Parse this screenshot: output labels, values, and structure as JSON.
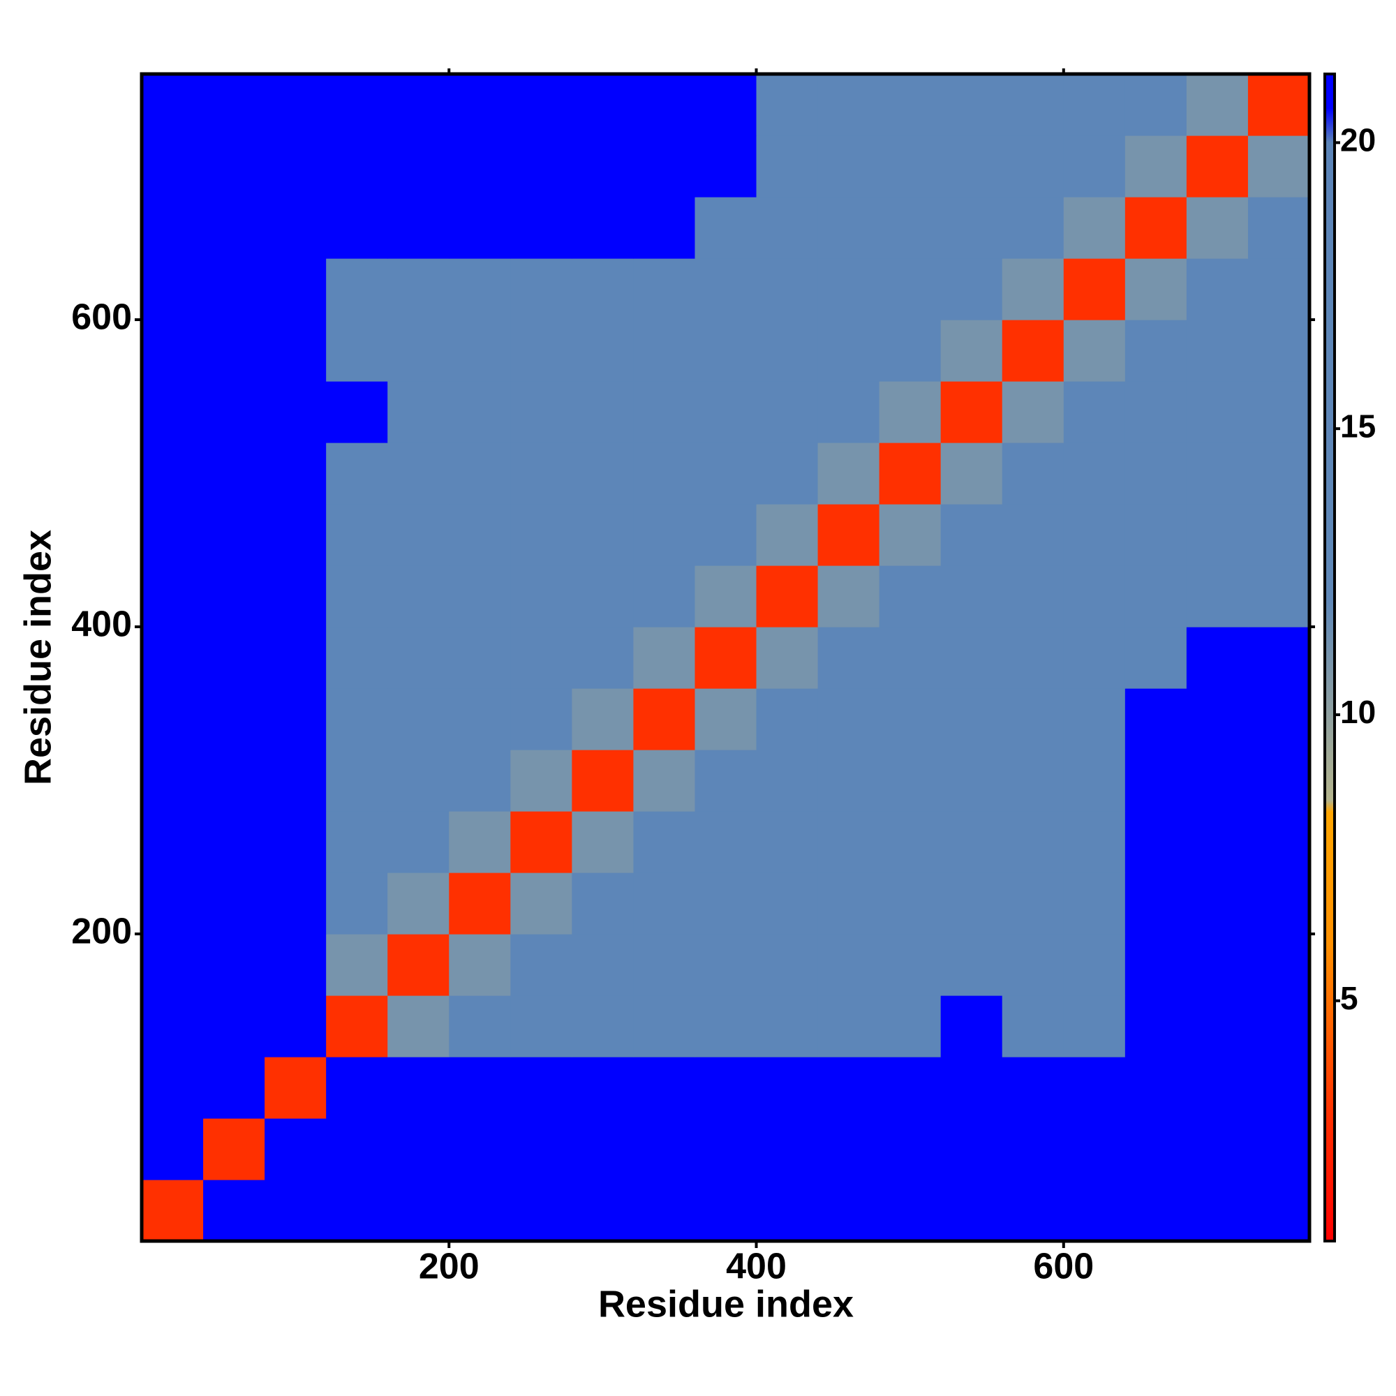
{
  "chart_data": {
    "type": "heatmap",
    "x_label": "Residue index",
    "y_label": "Residue index",
    "xlim": [
      0,
      760
    ],
    "ylim": [
      0,
      760
    ],
    "xticks": [
      200,
      400,
      600
    ],
    "yticks": [
      200,
      400,
      600
    ],
    "clim": [
      0.8,
      21.2
    ],
    "cticks": [
      5,
      10,
      15,
      20
    ],
    "colorscale": [
      [
        0.8,
        "#ff0000"
      ],
      [
        3,
        "#ff3000"
      ],
      [
        6,
        "#ff9000"
      ],
      [
        8.3,
        "#ffa500"
      ],
      [
        8.5,
        "#b4b48c"
      ],
      [
        10,
        "#8fa0a0"
      ],
      [
        12,
        "#5f88b8"
      ],
      [
        20,
        "#5b84b8"
      ],
      [
        20.6,
        "#0000ff"
      ],
      [
        21.2,
        "#0000ff"
      ]
    ],
    "xbins": [
      0,
      40,
      80,
      120,
      160,
      200,
      240,
      280,
      320,
      360,
      400,
      440,
      480,
      520,
      560,
      600,
      640,
      680,
      720,
      760
    ],
    "ybins": [
      0,
      40,
      80,
      120,
      160,
      200,
      240,
      280,
      320,
      360,
      400,
      440,
      480,
      520,
      560,
      600,
      640,
      680,
      720,
      760
    ],
    "z": [
      [
        3,
        21,
        21,
        21,
        21,
        21,
        21,
        21,
        21,
        21,
        21,
        21,
        21,
        21,
        21,
        21,
        21,
        21,
        21
      ],
      [
        21,
        3,
        21,
        21,
        21,
        21,
        21,
        21,
        21,
        21,
        21,
        21,
        21,
        21,
        21,
        21,
        21,
        21,
        21
      ],
      [
        21,
        21,
        3,
        21,
        21,
        21,
        21,
        21,
        21,
        21,
        21,
        21,
        21,
        21,
        21,
        21,
        21,
        21,
        21
      ],
      [
        21,
        21,
        21,
        3,
        11,
        16,
        16,
        16,
        16,
        16,
        16,
        16,
        16,
        21,
        16,
        16,
        21,
        21,
        21
      ],
      [
        21,
        21,
        21,
        11,
        3,
        11,
        16,
        16,
        16,
        16,
        16,
        16,
        16,
        16,
        16,
        16,
        21,
        21,
        21
      ],
      [
        21,
        21,
        21,
        16,
        11,
        3,
        11,
        16,
        16,
        16,
        16,
        16,
        16,
        16,
        16,
        16,
        21,
        21,
        21
      ],
      [
        21,
        21,
        21,
        16,
        16,
        11,
        3,
        11,
        16,
        16,
        16,
        16,
        16,
        16,
        16,
        16,
        21,
        21,
        21
      ],
      [
        21,
        21,
        21,
        16,
        16,
        16,
        11,
        3,
        11,
        16,
        16,
        16,
        16,
        16,
        16,
        16,
        21,
        21,
        21
      ],
      [
        21,
        21,
        21,
        16,
        16,
        16,
        16,
        11,
        3,
        11,
        16,
        16,
        16,
        16,
        16,
        16,
        21,
        21,
        21
      ],
      [
        21,
        21,
        21,
        16,
        16,
        16,
        16,
        16,
        11,
        3,
        11,
        16,
        16,
        16,
        16,
        16,
        16,
        21,
        21
      ],
      [
        21,
        21,
        21,
        16,
        16,
        16,
        16,
        16,
        16,
        11,
        3,
        11,
        16,
        16,
        16,
        16,
        16,
        16,
        16
      ],
      [
        21,
        21,
        21,
        16,
        16,
        16,
        16,
        16,
        16,
        16,
        11,
        3,
        11,
        16,
        16,
        16,
        16,
        16,
        16
      ],
      [
        21,
        21,
        21,
        16,
        16,
        16,
        16,
        16,
        16,
        16,
        16,
        11,
        3,
        11,
        16,
        16,
        16,
        16,
        16
      ],
      [
        21,
        21,
        21,
        21,
        16,
        16,
        16,
        16,
        16,
        16,
        16,
        16,
        11,
        3,
        11,
        16,
        16,
        16,
        16
      ],
      [
        21,
        21,
        21,
        16,
        16,
        16,
        16,
        16,
        16,
        16,
        16,
        16,
        16,
        11,
        3,
        11,
        16,
        16,
        16
      ],
      [
        21,
        21,
        21,
        16,
        16,
        16,
        16,
        16,
        16,
        16,
        16,
        16,
        16,
        16,
        11,
        3,
        11,
        16,
        16
      ],
      [
        21,
        21,
        21,
        21,
        21,
        21,
        21,
        21,
        21,
        16,
        16,
        16,
        16,
        16,
        16,
        11,
        3,
        11,
        16
      ],
      [
        21,
        21,
        21,
        21,
        21,
        21,
        21,
        21,
        21,
        21,
        16,
        16,
        16,
        16,
        16,
        16,
        11,
        3,
        11
      ],
      [
        21,
        21,
        21,
        21,
        21,
        21,
        21,
        21,
        21,
        21,
        16,
        16,
        16,
        16,
        16,
        16,
        16,
        11,
        3
      ]
    ]
  }
}
